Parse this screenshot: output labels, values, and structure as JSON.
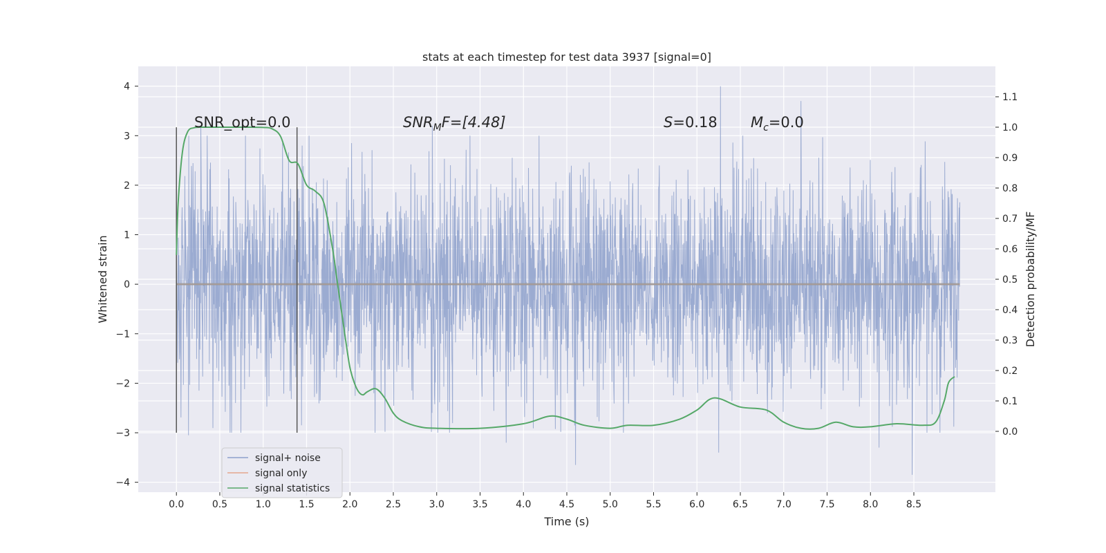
{
  "chart_data": {
    "type": "line",
    "title": "stats at each timestep for test data 3937 [signal=0]",
    "xlabel": "Time (s)",
    "ylabel_left": "Whitened strain",
    "ylabel_right": "Detection probability/MF",
    "xlim": [
      -0.44,
      9.44
    ],
    "ylim_left": [
      -4.2,
      4.4
    ],
    "ylim_right": [
      -0.2,
      1.2
    ],
    "x_ticks": [
      "0.0",
      "0.5",
      "1.0",
      "1.5",
      "2.0",
      "2.5",
      "3.0",
      "3.5",
      "4.0",
      "4.5",
      "5.0",
      "5.5",
      "6.0",
      "6.5",
      "7.0",
      "7.5",
      "8.0",
      "8.5"
    ],
    "y_left_ticks": [
      "4",
      "3",
      "2",
      "1",
      "0",
      "−1",
      "−2",
      "−3",
      "−4"
    ],
    "y_right_ticks": [
      "1.1",
      "1.0",
      "0.9",
      "0.8",
      "0.7",
      "0.6",
      "0.5",
      "0.4",
      "0.3",
      "0.2",
      "0.1",
      "0.0"
    ],
    "vertical_lines": [
      0.0,
      1.39
    ],
    "annotations": {
      "snr_opt": "SNR_opt=0.0",
      "snr_mf_label": "SNR",
      "snr_mf_sub": "M",
      "snr_mf_rest": "F=[4.48]",
      "s_label": "S",
      "s_value": "=0.18",
      "mc_label": "M",
      "mc_sub": "c",
      "mc_value": "=0.0"
    },
    "legend": {
      "placement": "lower-left",
      "entries": [
        {
          "label": "signal+ noise",
          "color": "#8da0cb"
        },
        {
          "label": "signal only",
          "color": "#e5a68c"
        },
        {
          "label": "signal statistics",
          "color": "#55a868"
        }
      ]
    },
    "series": [
      {
        "name": "signal+ noise",
        "axis": "left",
        "color": "#8da0cb",
        "x_range": [
          0.0,
          9.03
        ],
        "envelope_sigma": 1.1,
        "peaks": [
          {
            "x": 0.28,
            "y": 3.2
          },
          {
            "x": 1.45,
            "y": 2.8
          },
          {
            "x": 2.95,
            "y": 3.2
          },
          {
            "x": 6.27,
            "y": 4.0
          },
          {
            "x": 7.2,
            "y": 3.7
          },
          {
            "x": 8.48,
            "y": 3.6
          },
          {
            "x": 8.48,
            "y": -3.85
          },
          {
            "x": 4.6,
            "y": -3.65
          },
          {
            "x": 8.1,
            "y": -3.3
          },
          {
            "x": 6.25,
            "y": -3.4
          },
          {
            "x": 3.8,
            "y": -3.2
          },
          {
            "x": 0.14,
            "y": -3.05
          }
        ]
      },
      {
        "name": "signal only",
        "axis": "left",
        "color": "#e5a68c",
        "x": [
          0.0,
          9.03
        ],
        "y": [
          0.0,
          0.0
        ]
      },
      {
        "name": "signal statistics",
        "axis": "right",
        "color": "#55a868",
        "x": [
          0.0,
          0.02,
          0.07,
          0.13,
          0.2,
          0.3,
          0.5,
          0.8,
          1.0,
          1.1,
          1.2,
          1.3,
          1.4,
          1.5,
          1.6,
          1.7,
          1.8,
          1.85,
          1.9,
          1.95,
          2.0,
          2.05,
          2.1,
          2.15,
          2.2,
          2.3,
          2.4,
          2.5,
          2.6,
          2.8,
          3.0,
          3.5,
          4.0,
          4.3,
          4.5,
          4.7,
          5.0,
          5.2,
          5.5,
          5.8,
          6.0,
          6.2,
          6.5,
          6.8,
          7.0,
          7.2,
          7.4,
          7.6,
          7.8,
          8.0,
          8.3,
          8.6,
          8.75,
          8.85,
          8.9,
          8.97
        ],
        "y": [
          0.58,
          0.75,
          0.92,
          0.985,
          0.998,
          1.0,
          1.0,
          1.0,
          0.999,
          0.995,
          0.97,
          0.89,
          0.88,
          0.81,
          0.79,
          0.75,
          0.6,
          0.5,
          0.4,
          0.3,
          0.21,
          0.16,
          0.13,
          0.12,
          0.13,
          0.14,
          0.11,
          0.06,
          0.035,
          0.015,
          0.01,
          0.01,
          0.025,
          0.05,
          0.04,
          0.02,
          0.01,
          0.02,
          0.02,
          0.04,
          0.07,
          0.11,
          0.08,
          0.07,
          0.03,
          0.01,
          0.01,
          0.03,
          0.015,
          0.015,
          0.025,
          0.02,
          0.03,
          0.1,
          0.16,
          0.18
        ]
      }
    ]
  }
}
